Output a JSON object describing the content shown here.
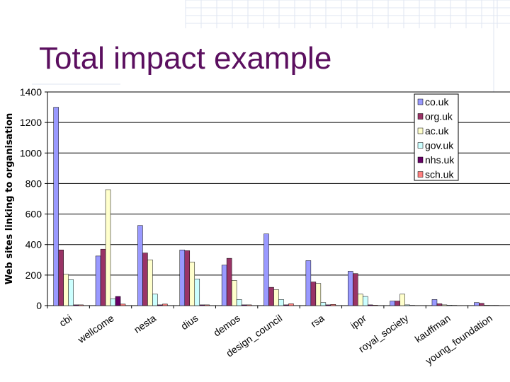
{
  "slide": {
    "title": "Total impact example"
  },
  "chart_data": {
    "type": "bar",
    "title": "",
    "xlabel": "",
    "ylabel": "Web sites linking to organisation",
    "ylim": [
      0,
      1400
    ],
    "yticks": [
      0,
      200,
      400,
      600,
      800,
      1000,
      1200,
      1400
    ],
    "grid": true,
    "legend_position": "top-right",
    "categories": [
      "cbi",
      "wellcome",
      "nesta",
      "dius",
      "demos",
      "design_council",
      "rsa",
      "ippr",
      "royal_society",
      "kauffman",
      "young_foundation"
    ],
    "series": [
      {
        "name": "co.uk",
        "color": "#9999ff",
        "values": [
          1300,
          325,
          525,
          365,
          265,
          470,
          295,
          225,
          30,
          40,
          20
        ]
      },
      {
        "name": "org.uk",
        "color": "#993366",
        "values": [
          365,
          370,
          345,
          360,
          310,
          120,
          155,
          210,
          30,
          12,
          15
        ]
      },
      {
        "name": "ac.uk",
        "color": "#ffffcc",
        "values": [
          205,
          760,
          300,
          285,
          165,
          105,
          145,
          75,
          75,
          5,
          3
        ]
      },
      {
        "name": "gov.uk",
        "color": "#ccffff",
        "values": [
          170,
          45,
          75,
          175,
          40,
          40,
          20,
          60,
          5,
          3,
          2
        ]
      },
      {
        "name": "nhs.uk",
        "color": "#660066",
        "values": [
          5,
          60,
          5,
          5,
          5,
          5,
          5,
          5,
          2,
          2,
          2
        ]
      },
      {
        "name": "sch.uk",
        "color": "#ff8080",
        "values": [
          5,
          10,
          10,
          5,
          5,
          12,
          8,
          3,
          1,
          1,
          1
        ]
      }
    ]
  }
}
